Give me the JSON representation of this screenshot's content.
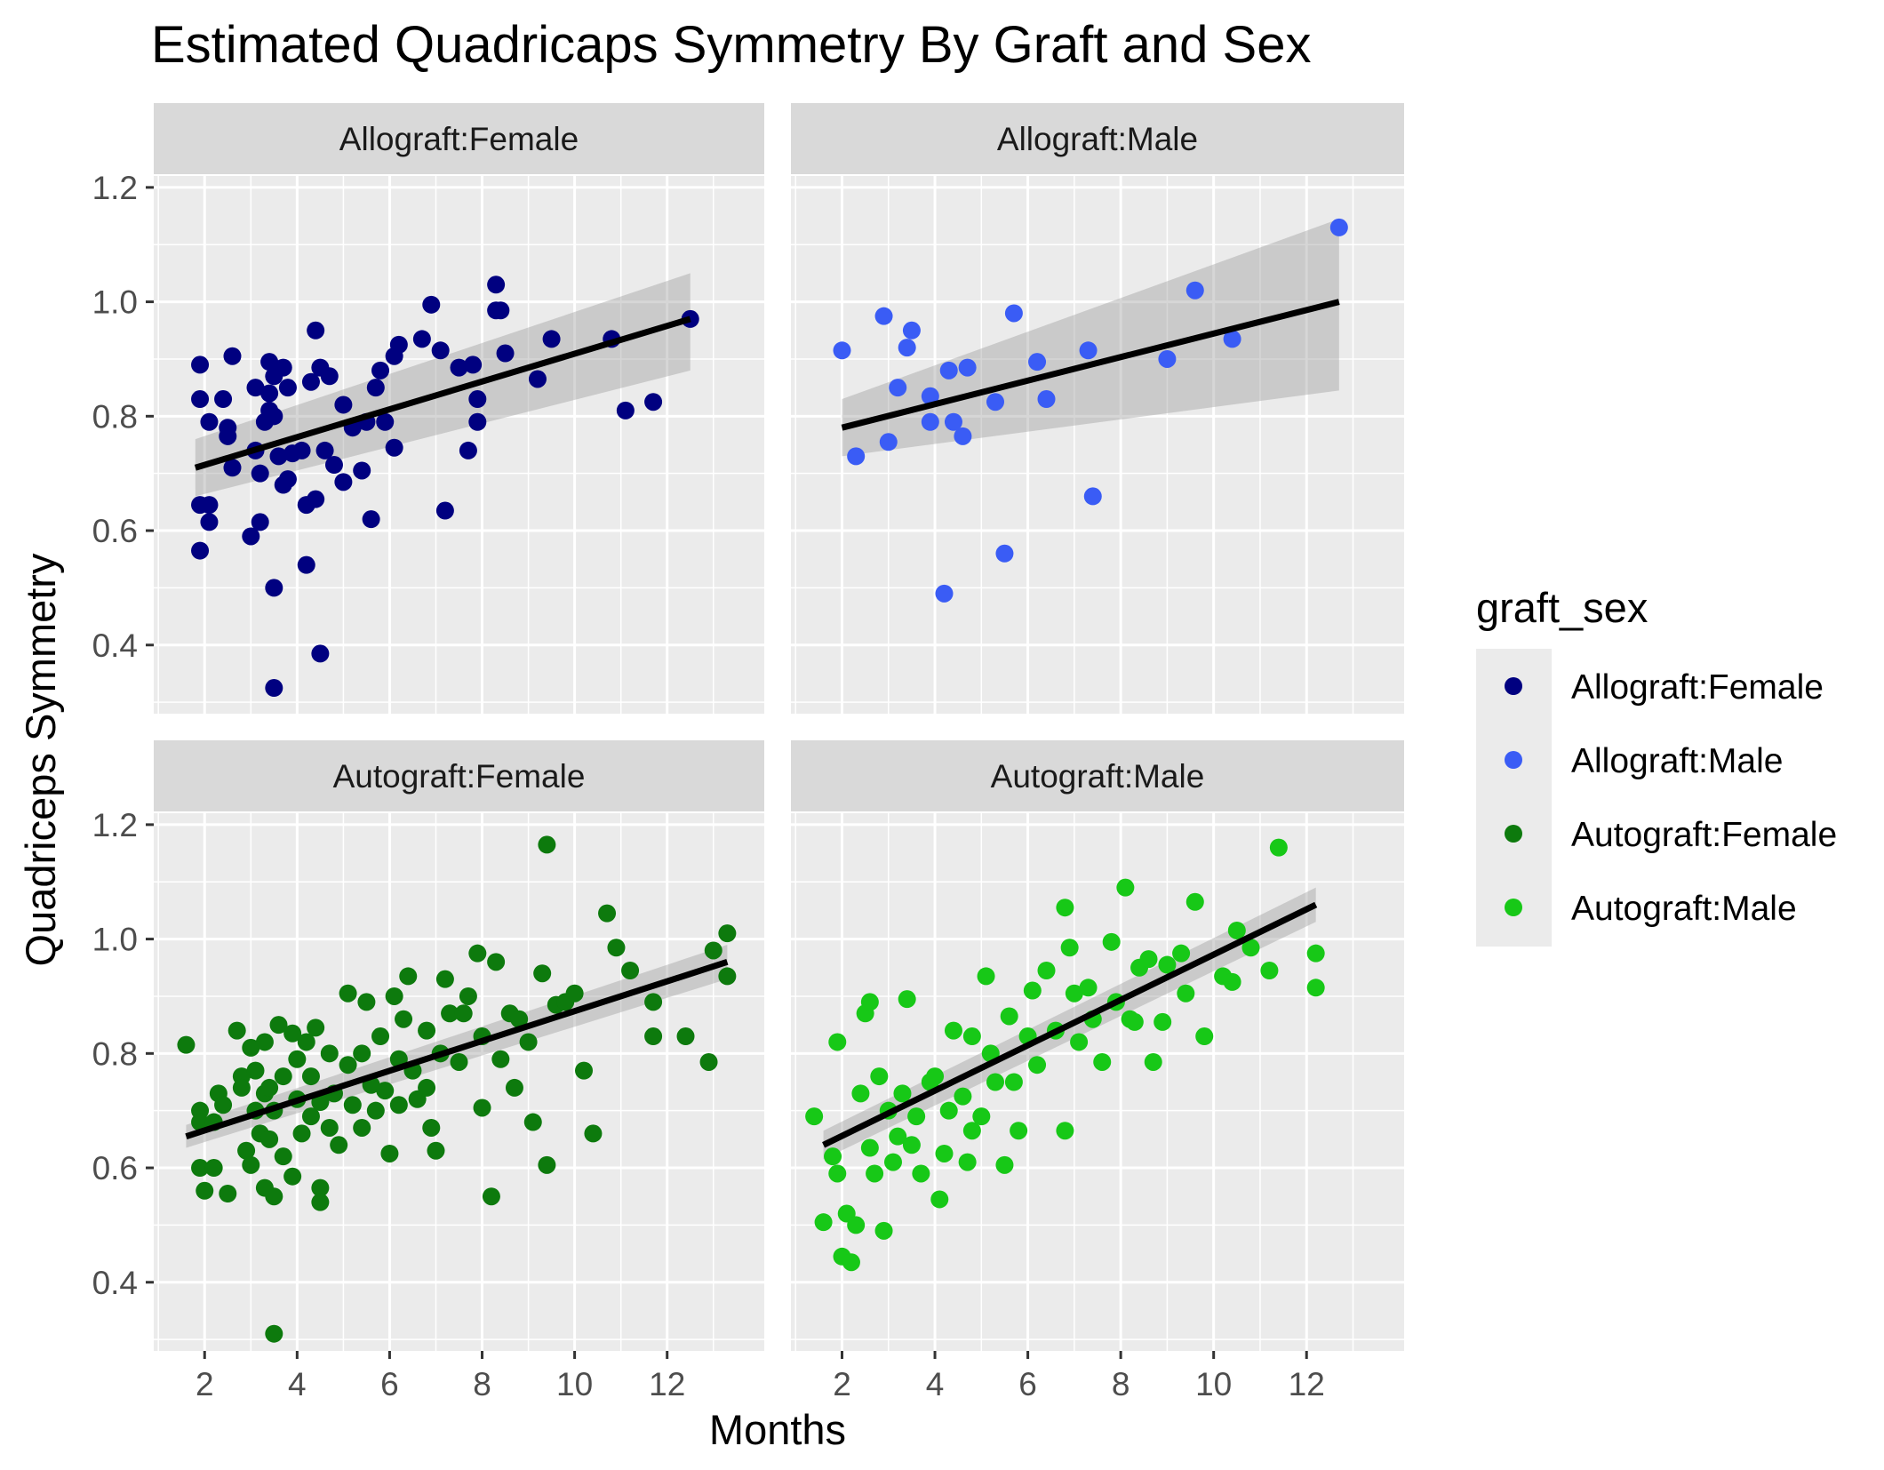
{
  "chart_data": {
    "type": "scatter",
    "title": "Estimated Quadricaps Symmetry By Graft and Sex",
    "xlabel": "Months",
    "ylabel": "Quadriceps Symmetry",
    "xlim": [
      0.9,
      14.1
    ],
    "ylim": [
      0.28,
      1.22
    ],
    "x_ticks": [
      2,
      4,
      6,
      8,
      10,
      12
    ],
    "y_ticks": [
      0.4,
      0.6,
      0.8,
      1.0,
      1.2
    ],
    "y_tick_labels": [
      "0.4",
      "0.6",
      "0.8",
      "1.0",
      "1.2"
    ],
    "grid": true,
    "legend": {
      "title": "graft_sex",
      "position": "right",
      "entries": [
        "Allograft:Female",
        "Allograft:Male",
        "Autograft:Female",
        "Autograft:Male"
      ]
    },
    "panels": [
      {
        "name": "Allograft:Female",
        "color": "#000080",
        "fit": {
          "x": [
            1.8,
            12.5
          ],
          "y": [
            0.71,
            0.97
          ]
        },
        "ci": {
          "lower": [
            0.66,
            0.88
          ],
          "upper": [
            0.76,
            1.05
          ]
        },
        "points": [
          [
            1.9,
            0.89
          ],
          [
            1.9,
            0.83
          ],
          [
            1.9,
            0.645
          ],
          [
            1.9,
            0.565
          ],
          [
            2.1,
            0.79
          ],
          [
            2.1,
            0.645
          ],
          [
            2.1,
            0.615
          ],
          [
            2.4,
            0.83
          ],
          [
            2.5,
            0.78
          ],
          [
            2.5,
            0.765
          ],
          [
            2.6,
            0.905
          ],
          [
            2.6,
            0.71
          ],
          [
            3.0,
            0.59
          ],
          [
            3.1,
            0.85
          ],
          [
            3.1,
            0.74
          ],
          [
            3.2,
            0.7
          ],
          [
            3.2,
            0.615
          ],
          [
            3.3,
            0.79
          ],
          [
            3.4,
            0.895
          ],
          [
            3.4,
            0.84
          ],
          [
            3.4,
            0.81
          ],
          [
            3.5,
            0.87
          ],
          [
            3.5,
            0.8
          ],
          [
            3.5,
            0.5
          ],
          [
            3.5,
            0.325
          ],
          [
            3.6,
            0.73
          ],
          [
            3.7,
            0.885
          ],
          [
            3.7,
            0.68
          ],
          [
            3.8,
            0.85
          ],
          [
            3.8,
            0.69
          ],
          [
            3.9,
            0.735
          ],
          [
            4.1,
            0.74
          ],
          [
            4.2,
            0.645
          ],
          [
            4.2,
            0.54
          ],
          [
            4.3,
            0.86
          ],
          [
            4.4,
            0.95
          ],
          [
            4.4,
            0.655
          ],
          [
            4.5,
            0.885
          ],
          [
            4.5,
            0.385
          ],
          [
            4.6,
            0.74
          ],
          [
            4.7,
            0.87
          ],
          [
            4.8,
            0.715
          ],
          [
            5.0,
            0.82
          ],
          [
            5.0,
            0.685
          ],
          [
            5.2,
            0.78
          ],
          [
            5.4,
            0.705
          ],
          [
            5.5,
            0.79
          ],
          [
            5.6,
            0.62
          ],
          [
            5.7,
            0.85
          ],
          [
            5.8,
            0.88
          ],
          [
            5.9,
            0.79
          ],
          [
            6.1,
            0.905
          ],
          [
            6.1,
            0.745
          ],
          [
            6.2,
            0.925
          ],
          [
            6.7,
            0.935
          ],
          [
            6.9,
            0.995
          ],
          [
            7.1,
            0.915
          ],
          [
            7.2,
            0.635
          ],
          [
            7.5,
            0.885
          ],
          [
            7.7,
            0.74
          ],
          [
            7.8,
            0.89
          ],
          [
            7.9,
            0.83
          ],
          [
            7.9,
            0.79
          ],
          [
            8.3,
            1.03
          ],
          [
            8.3,
            0.985
          ],
          [
            8.4,
            0.985
          ],
          [
            8.5,
            0.91
          ],
          [
            9.2,
            0.865
          ],
          [
            9.5,
            0.935
          ],
          [
            10.8,
            0.935
          ],
          [
            11.1,
            0.81
          ],
          [
            11.7,
            0.825
          ],
          [
            12.5,
            0.97
          ]
        ]
      },
      {
        "name": "Allograft:Male",
        "color": "#3a5cf5",
        "fit": {
          "x": [
            2.0,
            12.7
          ],
          "y": [
            0.78,
            1.0
          ]
        },
        "ci": {
          "lower": [
            0.73,
            0.845
          ],
          "upper": [
            0.83,
            1.145
          ]
        },
        "points": [
          [
            2.0,
            0.915
          ],
          [
            2.3,
            0.73
          ],
          [
            2.9,
            0.975
          ],
          [
            3.0,
            0.755
          ],
          [
            3.2,
            0.85
          ],
          [
            3.4,
            0.92
          ],
          [
            3.5,
            0.95
          ],
          [
            3.9,
            0.835
          ],
          [
            3.9,
            0.79
          ],
          [
            4.2,
            0.49
          ],
          [
            4.3,
            0.88
          ],
          [
            4.4,
            0.79
          ],
          [
            4.6,
            0.765
          ],
          [
            4.7,
            0.885
          ],
          [
            5.3,
            0.825
          ],
          [
            5.5,
            0.56
          ],
          [
            5.7,
            0.98
          ],
          [
            6.2,
            0.895
          ],
          [
            6.4,
            0.83
          ],
          [
            7.3,
            0.915
          ],
          [
            7.4,
            0.66
          ],
          [
            9.0,
            0.9
          ],
          [
            9.6,
            1.02
          ],
          [
            10.4,
            0.935
          ],
          [
            12.7,
            1.13
          ]
        ]
      },
      {
        "name": "Autograft:Female",
        "color": "#0d7a0d",
        "fit": {
          "x": [
            1.6,
            13.3
          ],
          "y": [
            0.655,
            0.96
          ]
        },
        "ci": {
          "lower": [
            0.635,
            0.93
          ],
          "upper": [
            0.675,
            0.99
          ]
        },
        "points": [
          [
            1.6,
            0.815
          ],
          [
            1.9,
            0.7
          ],
          [
            1.9,
            0.68
          ],
          [
            1.9,
            0.6
          ],
          [
            2.0,
            0.56
          ],
          [
            2.2,
            0.68
          ],
          [
            2.2,
            0.6
          ],
          [
            2.3,
            0.73
          ],
          [
            2.4,
            0.71
          ],
          [
            2.5,
            0.555
          ],
          [
            2.7,
            0.84
          ],
          [
            2.8,
            0.76
          ],
          [
            2.8,
            0.74
          ],
          [
            2.9,
            0.63
          ],
          [
            3.0,
            0.81
          ],
          [
            3.0,
            0.605
          ],
          [
            3.1,
            0.77
          ],
          [
            3.1,
            0.7
          ],
          [
            3.2,
            0.66
          ],
          [
            3.3,
            0.82
          ],
          [
            3.3,
            0.73
          ],
          [
            3.3,
            0.565
          ],
          [
            3.4,
            0.74
          ],
          [
            3.4,
            0.65
          ],
          [
            3.5,
            0.7
          ],
          [
            3.5,
            0.55
          ],
          [
            3.5,
            0.31
          ],
          [
            3.6,
            0.85
          ],
          [
            3.7,
            0.76
          ],
          [
            3.7,
            0.62
          ],
          [
            3.9,
            0.835
          ],
          [
            3.9,
            0.585
          ],
          [
            4.0,
            0.79
          ],
          [
            4.0,
            0.72
          ],
          [
            4.1,
            0.66
          ],
          [
            4.2,
            0.82
          ],
          [
            4.3,
            0.76
          ],
          [
            4.3,
            0.69
          ],
          [
            4.4,
            0.845
          ],
          [
            4.5,
            0.715
          ],
          [
            4.5,
            0.565
          ],
          [
            4.5,
            0.54
          ],
          [
            4.7,
            0.8
          ],
          [
            4.7,
            0.67
          ],
          [
            4.8,
            0.73
          ],
          [
            4.9,
            0.64
          ],
          [
            5.1,
            0.905
          ],
          [
            5.1,
            0.78
          ],
          [
            5.2,
            0.71
          ],
          [
            5.4,
            0.8
          ],
          [
            5.4,
            0.67
          ],
          [
            5.5,
            0.89
          ],
          [
            5.6,
            0.745
          ],
          [
            5.7,
            0.7
          ],
          [
            5.8,
            0.83
          ],
          [
            5.9,
            0.735
          ],
          [
            6.0,
            0.625
          ],
          [
            6.1,
            0.9
          ],
          [
            6.2,
            0.79
          ],
          [
            6.2,
            0.71
          ],
          [
            6.3,
            0.86
          ],
          [
            6.4,
            0.935
          ],
          [
            6.5,
            0.77
          ],
          [
            6.6,
            0.72
          ],
          [
            6.8,
            0.84
          ],
          [
            6.8,
            0.74
          ],
          [
            6.9,
            0.67
          ],
          [
            7.0,
            0.63
          ],
          [
            7.1,
            0.8
          ],
          [
            7.2,
            0.93
          ],
          [
            7.3,
            0.87
          ],
          [
            7.5,
            0.785
          ],
          [
            7.6,
            0.87
          ],
          [
            7.7,
            0.9
          ],
          [
            7.9,
            0.975
          ],
          [
            8.0,
            0.83
          ],
          [
            8.0,
            0.705
          ],
          [
            8.2,
            0.55
          ],
          [
            8.3,
            0.96
          ],
          [
            8.4,
            0.79
          ],
          [
            8.6,
            0.87
          ],
          [
            8.7,
            0.74
          ],
          [
            8.8,
            0.86
          ],
          [
            9.0,
            0.82
          ],
          [
            9.1,
            0.68
          ],
          [
            9.3,
            0.94
          ],
          [
            9.4,
            0.605
          ],
          [
            9.4,
            1.165
          ],
          [
            9.6,
            0.885
          ],
          [
            9.8,
            0.89
          ],
          [
            10.0,
            0.905
          ],
          [
            10.2,
            0.77
          ],
          [
            10.4,
            0.66
          ],
          [
            10.7,
            1.045
          ],
          [
            10.9,
            0.985
          ],
          [
            11.2,
            0.945
          ],
          [
            11.7,
            0.89
          ],
          [
            11.7,
            0.83
          ],
          [
            12.4,
            0.83
          ],
          [
            12.9,
            0.785
          ],
          [
            13.0,
            0.98
          ],
          [
            13.3,
            1.01
          ],
          [
            13.3,
            0.935
          ]
        ]
      },
      {
        "name": "Autograft:Male",
        "color": "#17c817",
        "fit": {
          "x": [
            1.6,
            12.2
          ],
          "y": [
            0.64,
            1.06
          ]
        },
        "ci": {
          "lower": [
            0.615,
            1.03
          ],
          "upper": [
            0.665,
            1.09
          ]
        },
        "points": [
          [
            1.4,
            0.69
          ],
          [
            1.6,
            0.505
          ],
          [
            1.8,
            0.62
          ],
          [
            1.9,
            0.82
          ],
          [
            1.9,
            0.59
          ],
          [
            2.0,
            0.445
          ],
          [
            2.1,
            0.52
          ],
          [
            2.2,
            0.435
          ],
          [
            2.3,
            0.5
          ],
          [
            2.4,
            0.73
          ],
          [
            2.5,
            0.87
          ],
          [
            2.6,
            0.635
          ],
          [
            2.6,
            0.89
          ],
          [
            2.7,
            0.59
          ],
          [
            2.8,
            0.76
          ],
          [
            2.9,
            0.49
          ],
          [
            3.0,
            0.7
          ],
          [
            3.1,
            0.61
          ],
          [
            3.2,
            0.655
          ],
          [
            3.3,
            0.73
          ],
          [
            3.4,
            0.895
          ],
          [
            3.5,
            0.64
          ],
          [
            3.6,
            0.69
          ],
          [
            3.7,
            0.59
          ],
          [
            3.9,
            0.75
          ],
          [
            4.0,
            0.76
          ],
          [
            4.1,
            0.545
          ],
          [
            4.2,
            0.625
          ],
          [
            4.3,
            0.7
          ],
          [
            4.4,
            0.84
          ],
          [
            4.6,
            0.725
          ],
          [
            4.7,
            0.61
          ],
          [
            4.8,
            0.665
          ],
          [
            4.8,
            0.83
          ],
          [
            5.0,
            0.69
          ],
          [
            5.1,
            0.935
          ],
          [
            5.2,
            0.8
          ],
          [
            5.3,
            0.75
          ],
          [
            5.5,
            0.605
          ],
          [
            5.6,
            0.865
          ],
          [
            5.7,
            0.75
          ],
          [
            5.8,
            0.665
          ],
          [
            6.0,
            0.83
          ],
          [
            6.1,
            0.91
          ],
          [
            6.2,
            0.78
          ],
          [
            6.4,
            0.945
          ],
          [
            6.6,
            0.84
          ],
          [
            6.8,
            0.665
          ],
          [
            6.8,
            1.055
          ],
          [
            6.9,
            0.985
          ],
          [
            7.0,
            0.905
          ],
          [
            7.1,
            0.82
          ],
          [
            7.3,
            0.915
          ],
          [
            7.4,
            0.86
          ],
          [
            7.6,
            0.785
          ],
          [
            7.8,
            0.995
          ],
          [
            7.9,
            0.89
          ],
          [
            8.1,
            1.09
          ],
          [
            8.2,
            0.86
          ],
          [
            8.3,
            0.855
          ],
          [
            8.4,
            0.95
          ],
          [
            8.6,
            0.965
          ],
          [
            8.7,
            0.785
          ],
          [
            8.9,
            0.855
          ],
          [
            9.0,
            0.955
          ],
          [
            9.3,
            0.975
          ],
          [
            9.4,
            0.905
          ],
          [
            9.6,
            1.065
          ],
          [
            9.8,
            0.83
          ],
          [
            10.2,
            0.935
          ],
          [
            10.4,
            0.925
          ],
          [
            10.5,
            1.015
          ],
          [
            10.8,
            0.985
          ],
          [
            11.2,
            0.945
          ],
          [
            11.4,
            1.16
          ],
          [
            12.2,
            0.915
          ],
          [
            12.2,
            0.975
          ]
        ]
      }
    ]
  }
}
